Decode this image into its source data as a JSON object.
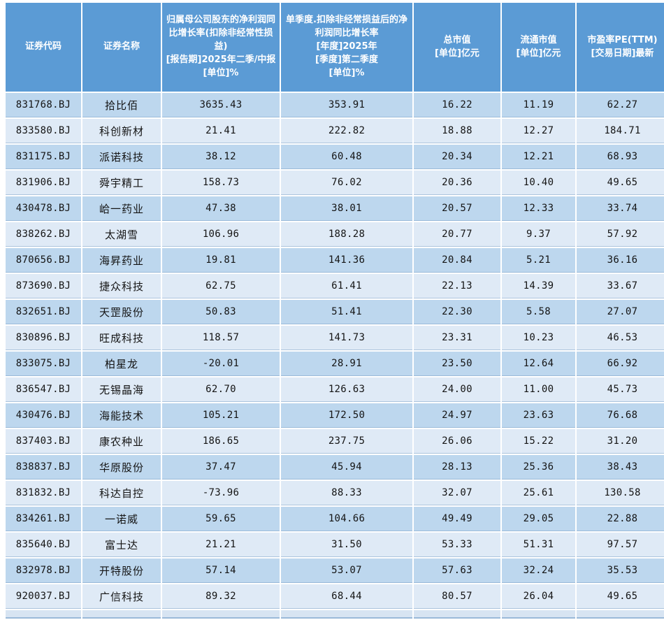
{
  "colors": {
    "header_bg": "#5b9bd5",
    "header_text": "#ffffff",
    "row_band_dark": "#bdd7ee",
    "row_band_light": "#dfeaf6",
    "grid_gap": "#ffffff",
    "cell_text": "#141414"
  },
  "chart_data": {
    "type": "table",
    "columns": [
      {
        "id": "code",
        "label": "证券代码"
      },
      {
        "id": "name",
        "label": "证券名称"
      },
      {
        "id": "yoy_net_profit_growth",
        "label": "归属母公司股东的净利润同比增长率(扣除非经常性损益)\n[报告期]2025年二季/中报\n[单位]%"
      },
      {
        "id": "single_quarter_growth",
        "label": "单季度.扣除非经常损益后的净利润同比增长率\n[年度]2025年\n[季度]第二季度\n[单位]%"
      },
      {
        "id": "total_market_value",
        "label": "总市值\n[单位]亿元"
      },
      {
        "id": "float_market_value",
        "label": "流通市值\n[单位]亿元"
      },
      {
        "id": "pe_ttm",
        "label": "市盈率PE(TTM)\n[交易日期]最新"
      }
    ],
    "rows": [
      [
        "831768.BJ",
        "拾比佰",
        "3635.43",
        "353.91",
        "16.22",
        "11.19",
        "62.27"
      ],
      [
        "833580.BJ",
        "科创新材",
        "21.41",
        "222.82",
        "18.88",
        "12.27",
        "184.71"
      ],
      [
        "831175.BJ",
        "派诺科技",
        "38.12",
        "60.48",
        "20.34",
        "12.21",
        "68.93"
      ],
      [
        "831906.BJ",
        "舜宇精工",
        "158.73",
        "76.02",
        "20.36",
        "10.40",
        "49.65"
      ],
      [
        "430478.BJ",
        "峆一药业",
        "47.38",
        "38.01",
        "20.57",
        "12.33",
        "33.74"
      ],
      [
        "838262.BJ",
        "太湖雪",
        "106.96",
        "188.28",
        "20.77",
        "9.37",
        "57.92"
      ],
      [
        "870656.BJ",
        "海昇药业",
        "19.81",
        "141.36",
        "20.84",
        "5.21",
        "36.16"
      ],
      [
        "873690.BJ",
        "捷众科技",
        "62.75",
        "61.41",
        "22.13",
        "14.39",
        "33.67"
      ],
      [
        "832651.BJ",
        "天罡股份",
        "50.83",
        "51.41",
        "22.30",
        "5.58",
        "27.07"
      ],
      [
        "830896.BJ",
        "旺成科技",
        "118.57",
        "141.73",
        "23.31",
        "10.23",
        "46.53"
      ],
      [
        "833075.BJ",
        "柏星龙",
        "-20.01",
        "28.91",
        "23.50",
        "12.64",
        "66.92"
      ],
      [
        "836547.BJ",
        "无锡晶海",
        "62.70",
        "126.63",
        "24.00",
        "11.00",
        "45.73"
      ],
      [
        "430476.BJ",
        "海能技术",
        "105.21",
        "172.50",
        "24.97",
        "23.63",
        "76.68"
      ],
      [
        "837403.BJ",
        "康农种业",
        "186.65",
        "237.75",
        "26.06",
        "15.22",
        "31.20"
      ],
      [
        "838837.BJ",
        "华原股份",
        "37.47",
        "45.94",
        "28.13",
        "25.36",
        "38.43"
      ],
      [
        "831832.BJ",
        "科达自控",
        "-73.96",
        "88.33",
        "32.07",
        "25.61",
        "130.58"
      ],
      [
        "834261.BJ",
        "一诺威",
        "59.65",
        "104.66",
        "49.49",
        "29.05",
        "22.88"
      ],
      [
        "835640.BJ",
        "富士达",
        "21.21",
        "31.50",
        "53.33",
        "51.31",
        "97.57"
      ],
      [
        "832978.BJ",
        "开特股份",
        "57.14",
        "53.07",
        "57.63",
        "32.24",
        "35.53"
      ],
      [
        "920037.BJ",
        "广信科技",
        "89.32",
        "68.44",
        "80.57",
        "26.04",
        "49.65"
      ]
    ]
  }
}
